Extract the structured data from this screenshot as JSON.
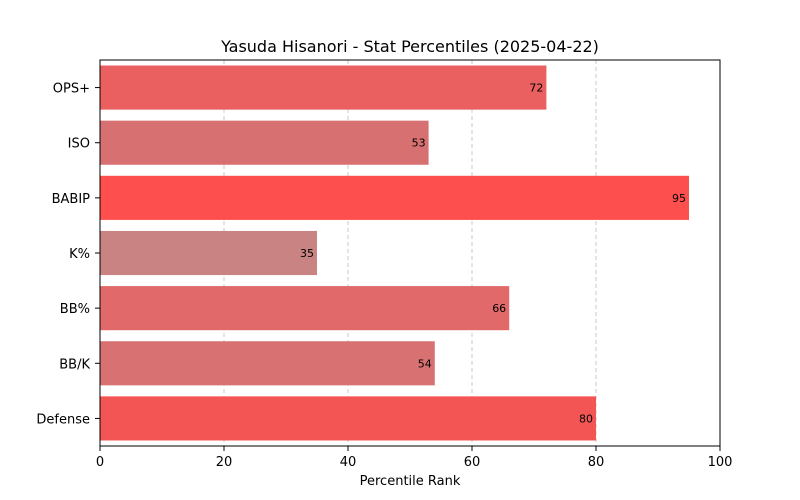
{
  "chart_data": {
    "type": "bar",
    "orientation": "horizontal",
    "title": "Yasuda Hisanori - Stat Percentiles (2025-04-22)",
    "xlabel": "Percentile Rank",
    "ylabel": "",
    "xlim": [
      0,
      100
    ],
    "xticks": [
      0,
      20,
      40,
      60,
      80,
      100
    ],
    "grid": "x-dashed",
    "categories": [
      "OPS+",
      "ISO",
      "BABIP",
      "K%",
      "BB%",
      "BB/K",
      "Defense"
    ],
    "values": [
      72,
      53,
      95,
      35,
      66,
      54,
      80
    ],
    "colors": [
      "#ea5f5f",
      "#d77070",
      "#fe4f4f",
      "#c98383",
      "#e26969",
      "#d87272",
      "#f35555"
    ]
  }
}
